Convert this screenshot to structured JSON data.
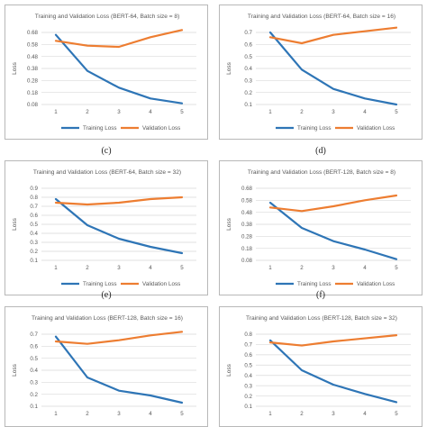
{
  "legend": {
    "training": "Training Loss",
    "validation": "Validation Loss"
  },
  "colors": {
    "training": "#2e75b6",
    "validation": "#ed7d31",
    "grid": "#d9d9d9",
    "text": "#595959"
  },
  "captions": {
    "c": "(c)",
    "d": "(d)",
    "e": "(e)",
    "f": "(f)"
  },
  "chart_data": [
    {
      "type": "line",
      "title": "Training and Validation Loss (BERT-64, Batch size = 8)",
      "ylabel": "Loss",
      "xlabel": "",
      "x": [
        1,
        2,
        3,
        4,
        5
      ],
      "yticks": [
        "0.08",
        "0.18",
        "0.28",
        "0.38",
        "0.48",
        "0.58",
        "0.68"
      ],
      "ylim": [
        0.08,
        0.68
      ],
      "series": [
        {
          "name": "Training Loss",
          "values": [
            0.66,
            0.36,
            0.22,
            0.13,
            0.09
          ]
        },
        {
          "name": "Validation Loss",
          "values": [
            0.61,
            0.57,
            0.56,
            0.64,
            0.7
          ]
        }
      ],
      "grid": true,
      "legend_position": "bottom"
    },
    {
      "type": "line",
      "title": "Training and Validation Loss (BERT-64, Batch size = 16)",
      "ylabel": "Loss",
      "xlabel": "",
      "x": [
        1,
        2,
        3,
        4,
        5
      ],
      "yticks": [
        "0.1",
        "0.2",
        "0.3",
        "0.4",
        "0.5",
        "0.6",
        "0.7"
      ],
      "ylim": [
        0.1,
        0.7
      ],
      "series": [
        {
          "name": "Training Loss",
          "values": [
            0.7,
            0.39,
            0.23,
            0.15,
            0.1
          ]
        },
        {
          "name": "Validation Loss",
          "values": [
            0.66,
            0.61,
            0.68,
            0.71,
            0.74
          ]
        }
      ],
      "grid": true,
      "legend_position": "bottom"
    },
    {
      "type": "line",
      "title": "Training and Validation Loss (BERT-64, Batch size = 32)",
      "ylabel": "Loss",
      "xlabel": "",
      "x": [
        1,
        2,
        3,
        4,
        5
      ],
      "yticks": [
        "0.1",
        "0.2",
        "0.3",
        "0.4",
        "0.5",
        "0.6",
        "0.7",
        "0.8",
        "0.9"
      ],
      "ylim": [
        0.1,
        0.9
      ],
      "series": [
        {
          "name": "Training Loss",
          "values": [
            0.78,
            0.49,
            0.34,
            0.25,
            0.18
          ]
        },
        {
          "name": "Validation Loss",
          "values": [
            0.74,
            0.72,
            0.74,
            0.78,
            0.8
          ]
        }
      ],
      "grid": true,
      "legend_position": "bottom"
    },
    {
      "type": "line",
      "title": "Training and Validation Loss (BERT-128, Batch size = 8)",
      "ylabel": "Loss",
      "xlabel": "",
      "x": [
        1,
        2,
        3,
        4,
        5
      ],
      "yticks": [
        "0.08",
        "0.18",
        "0.28",
        "0.38",
        "0.48",
        "0.58",
        "0.68"
      ],
      "ylim": [
        0.08,
        0.68
      ],
      "series": [
        {
          "name": "Training Loss",
          "values": [
            0.56,
            0.35,
            0.24,
            0.17,
            0.09
          ]
        },
        {
          "name": "Validation Loss",
          "values": [
            0.52,
            0.49,
            0.53,
            0.58,
            0.62
          ]
        }
      ],
      "grid": true,
      "legend_position": "bottom"
    },
    {
      "type": "line",
      "title": "Training and Validation Loss (BERT-128, Batch size = 16)",
      "ylabel": "Loss",
      "xlabel": "",
      "x": [
        1,
        2,
        3,
        4,
        5
      ],
      "yticks": [
        "0.1",
        "0.2",
        "0.3",
        "0.4",
        "0.5",
        "0.6",
        "0.7"
      ],
      "ylim": [
        0.1,
        0.7
      ],
      "series": [
        {
          "name": "Training Loss",
          "values": [
            0.68,
            0.34,
            0.23,
            0.19,
            0.13
          ]
        },
        {
          "name": "Validation Loss",
          "values": [
            0.64,
            0.62,
            0.65,
            0.69,
            0.72
          ]
        }
      ],
      "grid": true,
      "legend_position": "bottom"
    },
    {
      "type": "line",
      "title": "Training and Validation Loss (BERT-128, Batch size = 32)",
      "ylabel": "Loss",
      "xlabel": "",
      "x": [
        1,
        2,
        3,
        4,
        5
      ],
      "yticks": [
        "0.1",
        "0.2",
        "0.3",
        "0.4",
        "0.5",
        "0.6",
        "0.7",
        "0.8"
      ],
      "ylim": [
        0.1,
        0.8
      ],
      "series": [
        {
          "name": "Training Loss",
          "values": [
            0.74,
            0.45,
            0.31,
            0.22,
            0.14
          ]
        },
        {
          "name": "Validation Loss",
          "values": [
            0.72,
            0.69,
            0.73,
            0.76,
            0.79
          ]
        }
      ],
      "grid": true,
      "legend_position": "bottom"
    }
  ]
}
